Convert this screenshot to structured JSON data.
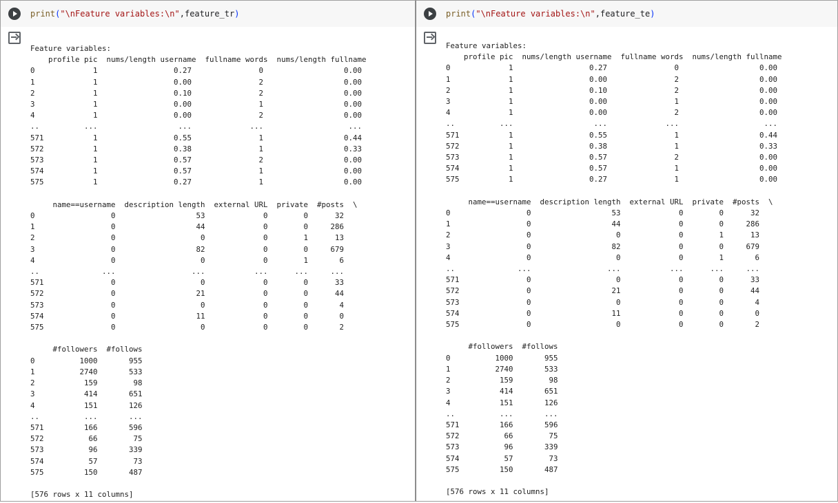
{
  "cells": [
    {
      "code": {
        "fn": "print",
        "open_paren": "(",
        "str": "\"\\nFeature variables:\\n\"",
        "rest": ",feature_tr",
        "close_paren": ")"
      },
      "output_text": "Feature variables:\n    profile pic  nums/length username  fullname words  nums/length fullname\n0             1                 0.27               0                  0.00\n1             1                 0.00               2                  0.00\n2             1                 0.10               2                  0.00\n3             1                 0.00               1                  0.00\n4             1                 0.00               2                  0.00\n..          ...                  ...             ...                   ...\n571           1                 0.55               1                  0.44\n572           1                 0.38               1                  0.33\n573           1                 0.57               2                  0.00\n574           1                 0.57               1                  0.00\n575           1                 0.27               1                  0.00\n\n     name==username  description length  external URL  private  #posts  \\\n0                 0                  53             0        0      32\n1                 0                  44             0        0     286\n2                 0                   0             0        1      13\n3                 0                  82             0        0     679\n4                 0                   0             0        1       6\n..              ...                 ...           ...      ...     ...\n571               0                   0             0        0      33\n572               0                  21             0        0      44\n573               0                   0             0        0       4\n574               0                  11             0        0       0\n575               0                   0             0        0       2\n\n     #followers  #follows\n0          1000       955\n1          2740       533\n2           159        98\n3           414       651\n4           151       126\n..          ...       ...\n571         166       596\n572          66        75\n573          96       339\n574          57        73\n575         150       487\n\n[576 rows x 11 columns]"
    },
    {
      "code": {
        "fn": "print",
        "open_paren": "(",
        "str": "\"\\nFeature variables:\\n\"",
        "rest": ",feature_te",
        "close_paren": ")"
      },
      "output_text": "Feature variables:\n    profile pic  nums/length username  fullname words  nums/length fullname\n0             1                 0.27               0                  0.00\n1             1                 0.00               2                  0.00\n2             1                 0.10               2                  0.00\n3             1                 0.00               1                  0.00\n4             1                 0.00               2                  0.00\n..          ...                  ...             ...                   ...\n571           1                 0.55               1                  0.44\n572           1                 0.38               1                  0.33\n573           1                 0.57               2                  0.00\n574           1                 0.57               1                  0.00\n575           1                 0.27               1                  0.00\n\n     name==username  description length  external URL  private  #posts  \\\n0                 0                  53             0        0      32\n1                 0                  44             0        0     286\n2                 0                   0             0        1      13\n3                 0                  82             0        0     679\n4                 0                   0             0        1       6\n..              ...                 ...           ...      ...     ...\n571               0                   0             0        0      33\n572               0                  21             0        0      44\n573               0                   0             0        0       4\n574               0                  11             0        0       0\n575               0                   0             0        0       2\n\n     #followers  #follows\n0          1000       955\n1          2740       533\n2           159        98\n3           414       651\n4           151       126\n..          ...       ...\n571         166       596\n572          66        75\n573          96       339\n574          57        73\n575         150       487\n\n[576 rows x 11 columns]"
    }
  ],
  "icons": {
    "run": "play-circle-icon",
    "output": "output-arrow-icon"
  },
  "colors": {
    "code_background": "#f7f7f7",
    "function": "#795e26",
    "string": "#a31515",
    "paren": "#0431fa",
    "text": "#212121"
  }
}
